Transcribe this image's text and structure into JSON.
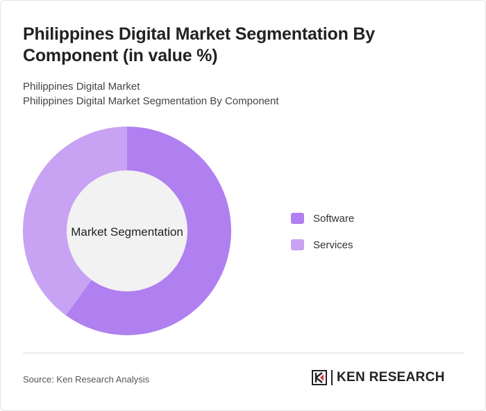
{
  "header": {
    "title": "Philippines Digital Market Segmentation By Component (in value %)",
    "subtitle_line1": "Philippines Digital Market",
    "subtitle_line2": "Philippines Digital Market Segmentation By Component"
  },
  "chart_data": {
    "type": "pie",
    "variant": "donut",
    "center_label": "Market Segmentation",
    "categories": [
      "Software",
      "Services"
    ],
    "values": [
      60,
      40
    ],
    "colors": [
      "#b07ff0",
      "#c8a2f3"
    ],
    "legend_position": "right"
  },
  "footer": {
    "source": "Source: Ken Research Analysis",
    "logo_text": "KEN RESEARCH",
    "logo_mark": "KR"
  }
}
